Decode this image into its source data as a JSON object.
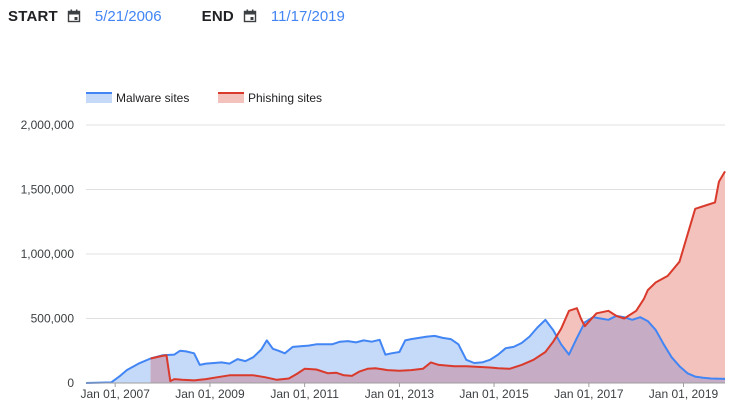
{
  "range": {
    "start_label": "START",
    "start_value": "5/21/2006",
    "end_label": "END",
    "end_value": "11/17/2019"
  },
  "colors": {
    "malware_line": "#4285f4",
    "malware_fill": "#c5d9f8",
    "phishing_line": "#d93a2b",
    "phishing_fill": "#f4c2bd",
    "overlap_fill": "#c7acc6",
    "grid": "#e0e0e0",
    "date_text": "#4285f4"
  },
  "chart_data": {
    "type": "area",
    "legend_position": "top-left",
    "grid": true,
    "ylim": [
      0,
      2000000
    ],
    "yticks": [
      0,
      500000,
      1000000,
      1500000,
      2000000
    ],
    "ytick_labels": [
      "0",
      "500,000",
      "1,000,000",
      "1,500,000",
      "2,000,000"
    ],
    "xlim": [
      "2006-05-21",
      "2019-11-17"
    ],
    "xticks": [
      "2007-01-01",
      "2009-01-01",
      "2011-01-01",
      "2013-01-01",
      "2015-01-01",
      "2017-01-01",
      "2019-01-01"
    ],
    "xtick_labels": [
      "Jan 01, 2007",
      "Jan 01, 2009",
      "Jan 01, 2011",
      "Jan 01, 2013",
      "Jan 01, 2015",
      "Jan 01, 2017",
      "Jan 01, 2019"
    ],
    "series": [
      {
        "name": "Malware sites",
        "points": [
          [
            "2006-05-21",
            0
          ],
          [
            "2006-12-01",
            5000
          ],
          [
            "2007-02-01",
            50000
          ],
          [
            "2007-04-01",
            100000
          ],
          [
            "2007-07-01",
            150000
          ],
          [
            "2007-10-01",
            190000
          ],
          [
            "2008-01-01",
            215000
          ],
          [
            "2008-04-01",
            220000
          ],
          [
            "2008-05-15",
            250000
          ],
          [
            "2008-07-01",
            245000
          ],
          [
            "2008-09-01",
            230000
          ],
          [
            "2008-10-15",
            140000
          ],
          [
            "2008-12-01",
            150000
          ],
          [
            "2009-02-01",
            155000
          ],
          [
            "2009-04-01",
            160000
          ],
          [
            "2009-06-01",
            150000
          ],
          [
            "2009-08-01",
            185000
          ],
          [
            "2009-10-01",
            170000
          ],
          [
            "2009-12-01",
            200000
          ],
          [
            "2010-02-01",
            260000
          ],
          [
            "2010-03-15",
            330000
          ],
          [
            "2010-05-01",
            265000
          ],
          [
            "2010-06-15",
            250000
          ],
          [
            "2010-08-01",
            230000
          ],
          [
            "2010-10-01",
            280000
          ],
          [
            "2010-12-01",
            285000
          ],
          [
            "2011-02-01",
            290000
          ],
          [
            "2011-04-01",
            300000
          ],
          [
            "2011-06-01",
            300000
          ],
          [
            "2011-08-01",
            300000
          ],
          [
            "2011-10-01",
            320000
          ],
          [
            "2011-12-01",
            325000
          ],
          [
            "2012-02-01",
            315000
          ],
          [
            "2012-04-01",
            330000
          ],
          [
            "2012-06-01",
            320000
          ],
          [
            "2012-08-01",
            335000
          ],
          [
            "2012-09-15",
            220000
          ],
          [
            "2012-11-01",
            230000
          ],
          [
            "2013-01-01",
            240000
          ],
          [
            "2013-02-15",
            330000
          ],
          [
            "2013-04-01",
            340000
          ],
          [
            "2013-06-01",
            350000
          ],
          [
            "2013-08-01",
            360000
          ],
          [
            "2013-10-01",
            365000
          ],
          [
            "2013-12-01",
            350000
          ],
          [
            "2014-02-01",
            340000
          ],
          [
            "2014-04-01",
            300000
          ],
          [
            "2014-06-01",
            180000
          ],
          [
            "2014-08-01",
            155000
          ],
          [
            "2014-10-01",
            160000
          ],
          [
            "2014-12-01",
            180000
          ],
          [
            "2015-02-01",
            220000
          ],
          [
            "2015-04-01",
            270000
          ],
          [
            "2015-06-01",
            280000
          ],
          [
            "2015-08-01",
            310000
          ],
          [
            "2015-10-01",
            360000
          ],
          [
            "2015-12-01",
            430000
          ],
          [
            "2016-02-01",
            490000
          ],
          [
            "2016-04-01",
            410000
          ],
          [
            "2016-06-01",
            300000
          ],
          [
            "2016-08-01",
            220000
          ],
          [
            "2016-10-01",
            350000
          ],
          [
            "2016-12-01",
            470000
          ],
          [
            "2017-02-01",
            510000
          ],
          [
            "2017-04-01",
            500000
          ],
          [
            "2017-06-01",
            490000
          ],
          [
            "2017-08-01",
            520000
          ],
          [
            "2017-10-01",
            510000
          ],
          [
            "2017-12-01",
            490000
          ],
          [
            "2018-02-01",
            510000
          ],
          [
            "2018-04-01",
            480000
          ],
          [
            "2018-06-01",
            410000
          ],
          [
            "2018-08-01",
            300000
          ],
          [
            "2018-10-01",
            200000
          ],
          [
            "2018-12-01",
            130000
          ],
          [
            "2019-02-01",
            75000
          ],
          [
            "2019-04-01",
            50000
          ],
          [
            "2019-06-01",
            40000
          ],
          [
            "2019-08-01",
            35000
          ],
          [
            "2019-11-17",
            32000
          ]
        ]
      },
      {
        "name": "Phishing sites",
        "points": [
          [
            "2007-10-01",
            190000
          ],
          [
            "2008-01-01",
            210000
          ],
          [
            "2008-02-01",
            215000
          ],
          [
            "2008-03-01",
            15000
          ],
          [
            "2008-04-01",
            30000
          ],
          [
            "2008-06-01",
            25000
          ],
          [
            "2008-09-01",
            20000
          ],
          [
            "2008-12-01",
            30000
          ],
          [
            "2009-03-01",
            45000
          ],
          [
            "2009-06-01",
            60000
          ],
          [
            "2009-09-01",
            60000
          ],
          [
            "2009-12-01",
            60000
          ],
          [
            "2010-03-01",
            45000
          ],
          [
            "2010-06-01",
            25000
          ],
          [
            "2010-09-01",
            35000
          ],
          [
            "2010-11-01",
            70000
          ],
          [
            "2011-01-01",
            110000
          ],
          [
            "2011-04-01",
            105000
          ],
          [
            "2011-07-01",
            75000
          ],
          [
            "2011-09-01",
            80000
          ],
          [
            "2011-11-01",
            60000
          ],
          [
            "2012-01-01",
            55000
          ],
          [
            "2012-03-01",
            90000
          ],
          [
            "2012-05-01",
            110000
          ],
          [
            "2012-07-01",
            115000
          ],
          [
            "2012-10-01",
            100000
          ],
          [
            "2013-01-01",
            95000
          ],
          [
            "2013-04-01",
            100000
          ],
          [
            "2013-07-01",
            110000
          ],
          [
            "2013-09-01",
            160000
          ],
          [
            "2013-11-01",
            140000
          ],
          [
            "2014-03-01",
            130000
          ],
          [
            "2014-06-01",
            130000
          ],
          [
            "2014-09-01",
            125000
          ],
          [
            "2014-12-01",
            120000
          ],
          [
            "2015-02-01",
            115000
          ],
          [
            "2015-05-01",
            110000
          ],
          [
            "2015-08-01",
            140000
          ],
          [
            "2015-11-01",
            180000
          ],
          [
            "2016-02-01",
            240000
          ],
          [
            "2016-04-01",
            320000
          ],
          [
            "2016-06-01",
            420000
          ],
          [
            "2016-08-01",
            560000
          ],
          [
            "2016-10-01",
            580000
          ],
          [
            "2016-11-01",
            500000
          ],
          [
            "2016-12-01",
            440000
          ],
          [
            "2017-03-01",
            540000
          ],
          [
            "2017-06-01",
            560000
          ],
          [
            "2017-08-01",
            520000
          ],
          [
            "2017-10-01",
            500000
          ],
          [
            "2018-01-01",
            560000
          ],
          [
            "2018-03-01",
            650000
          ],
          [
            "2018-04-01",
            720000
          ],
          [
            "2018-06-01",
            780000
          ],
          [
            "2018-09-01",
            830000
          ],
          [
            "2018-12-01",
            940000
          ],
          [
            "2019-02-01",
            1150000
          ],
          [
            "2019-04-01",
            1350000
          ],
          [
            "2019-07-01",
            1380000
          ],
          [
            "2019-09-01",
            1400000
          ],
          [
            "2019-10-01",
            1560000
          ],
          [
            "2019-11-17",
            1640000
          ]
        ]
      }
    ]
  }
}
